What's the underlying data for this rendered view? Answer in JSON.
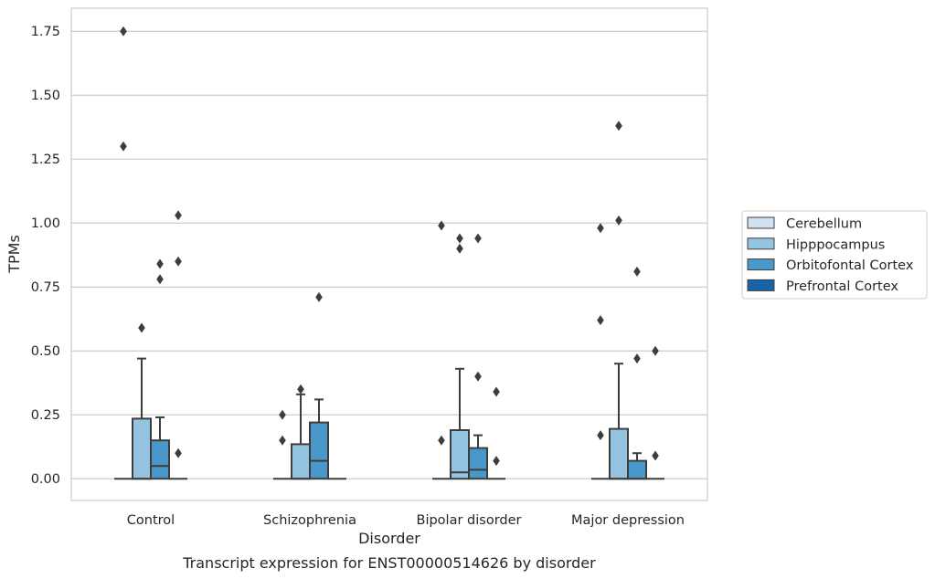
{
  "chart_data": {
    "type": "box",
    "ylabel": "TPMs",
    "xlabel": "Disorder",
    "caption": "Transcript expression for ENST00000514626 by disorder",
    "ylim": [
      -0.085,
      1.84
    ],
    "yticks": [
      0.0,
      0.25,
      0.5,
      0.75,
      1.0,
      1.25,
      1.5,
      1.75
    ],
    "ytick_labels": [
      "0.00",
      "0.25",
      "0.50",
      "0.75",
      "1.00",
      "1.25",
      "1.50",
      "1.75"
    ],
    "grid": "horizontal",
    "legend_position": "right",
    "categories": [
      "Control",
      "Schizophrenia",
      "Bipolar disorder",
      "Major depression"
    ],
    "hue_order": [
      "Cerebellum",
      "Hipppocampus",
      "Orbitofontal Cortex",
      "Prefrontal Cortex"
    ],
    "colors": {
      "Cerebellum": "#d0e1f2",
      "Hipppocampus": "#94c4df",
      "Orbitofontal Cortex": "#4a98c9",
      "Prefrontal Cortex": "#1764ab"
    },
    "boxes": [
      {
        "category": "Control",
        "tissue": "Cerebellum",
        "q1": 0,
        "median": 0,
        "q3": 0,
        "whislo": 0,
        "whishi": 0,
        "fliers": [
          1.75,
          1.3
        ]
      },
      {
        "category": "Control",
        "tissue": "Hipppocampus",
        "q1": 0,
        "median": 0,
        "q3": 0.235,
        "whislo": 0,
        "whishi": 0.47,
        "fliers": [
          0.59
        ]
      },
      {
        "category": "Control",
        "tissue": "Orbitofontal Cortex",
        "q1": 0,
        "median": 0.05,
        "q3": 0.15,
        "whislo": 0,
        "whishi": 0.24,
        "fliers": [
          0.84,
          0.78
        ]
      },
      {
        "category": "Control",
        "tissue": "Prefrontal Cortex",
        "q1": 0,
        "median": 0,
        "q3": 0,
        "whislo": 0,
        "whishi": 0,
        "fliers": [
          1.03,
          0.85,
          0.1
        ]
      },
      {
        "category": "Schizophrenia",
        "tissue": "Cerebellum",
        "q1": 0,
        "median": 0,
        "q3": 0,
        "whislo": 0,
        "whishi": 0,
        "fliers": [
          0.25,
          0.15
        ]
      },
      {
        "category": "Schizophrenia",
        "tissue": "Hipppocampus",
        "q1": 0,
        "median": 0,
        "q3": 0.135,
        "whislo": 0,
        "whishi": 0.33,
        "fliers": [
          0.35
        ]
      },
      {
        "category": "Schizophrenia",
        "tissue": "Orbitofontal Cortex",
        "q1": 0,
        "median": 0.07,
        "q3": 0.22,
        "whislo": 0,
        "whishi": 0.31,
        "fliers": [
          0.71
        ]
      },
      {
        "category": "Schizophrenia",
        "tissue": "Prefrontal Cortex",
        "q1": 0,
        "median": 0,
        "q3": 0,
        "whislo": 0,
        "whishi": 0,
        "fliers": []
      },
      {
        "category": "Bipolar disorder",
        "tissue": "Cerebellum",
        "q1": 0,
        "median": 0,
        "q3": 0,
        "whislo": 0,
        "whishi": 0,
        "fliers": [
          0.99,
          0.15
        ]
      },
      {
        "category": "Bipolar disorder",
        "tissue": "Hipppocampus",
        "q1": 0,
        "median": 0.025,
        "q3": 0.19,
        "whislo": 0,
        "whishi": 0.43,
        "fliers": [
          0.94,
          0.9
        ]
      },
      {
        "category": "Bipolar disorder",
        "tissue": "Orbitofontal Cortex",
        "q1": 0,
        "median": 0.035,
        "q3": 0.12,
        "whislo": 0,
        "whishi": 0.17,
        "fliers": [
          0.94,
          0.4
        ]
      },
      {
        "category": "Bipolar disorder",
        "tissue": "Prefrontal Cortex",
        "q1": 0,
        "median": 0,
        "q3": 0,
        "whislo": 0,
        "whishi": 0,
        "fliers": [
          0.34,
          0.07
        ]
      },
      {
        "category": "Major depression",
        "tissue": "Cerebellum",
        "q1": 0,
        "median": 0,
        "q3": 0,
        "whislo": 0,
        "whishi": 0,
        "fliers": [
          0.98,
          0.62,
          0.17
        ]
      },
      {
        "category": "Major depression",
        "tissue": "Hipppocampus",
        "q1": 0,
        "median": 0,
        "q3": 0.195,
        "whislo": 0,
        "whishi": 0.45,
        "fliers": [
          1.38,
          1.01
        ]
      },
      {
        "category": "Major depression",
        "tissue": "Orbitofontal Cortex",
        "q1": 0,
        "median": 0,
        "q3": 0.07,
        "whislo": 0,
        "whishi": 0.1,
        "fliers": [
          0.81,
          0.47
        ]
      },
      {
        "category": "Major depression",
        "tissue": "Prefrontal Cortex",
        "q1": 0,
        "median": 0,
        "q3": 0,
        "whislo": 0,
        "whishi": 0,
        "fliers": [
          0.5,
          0.09
        ]
      }
    ]
  }
}
